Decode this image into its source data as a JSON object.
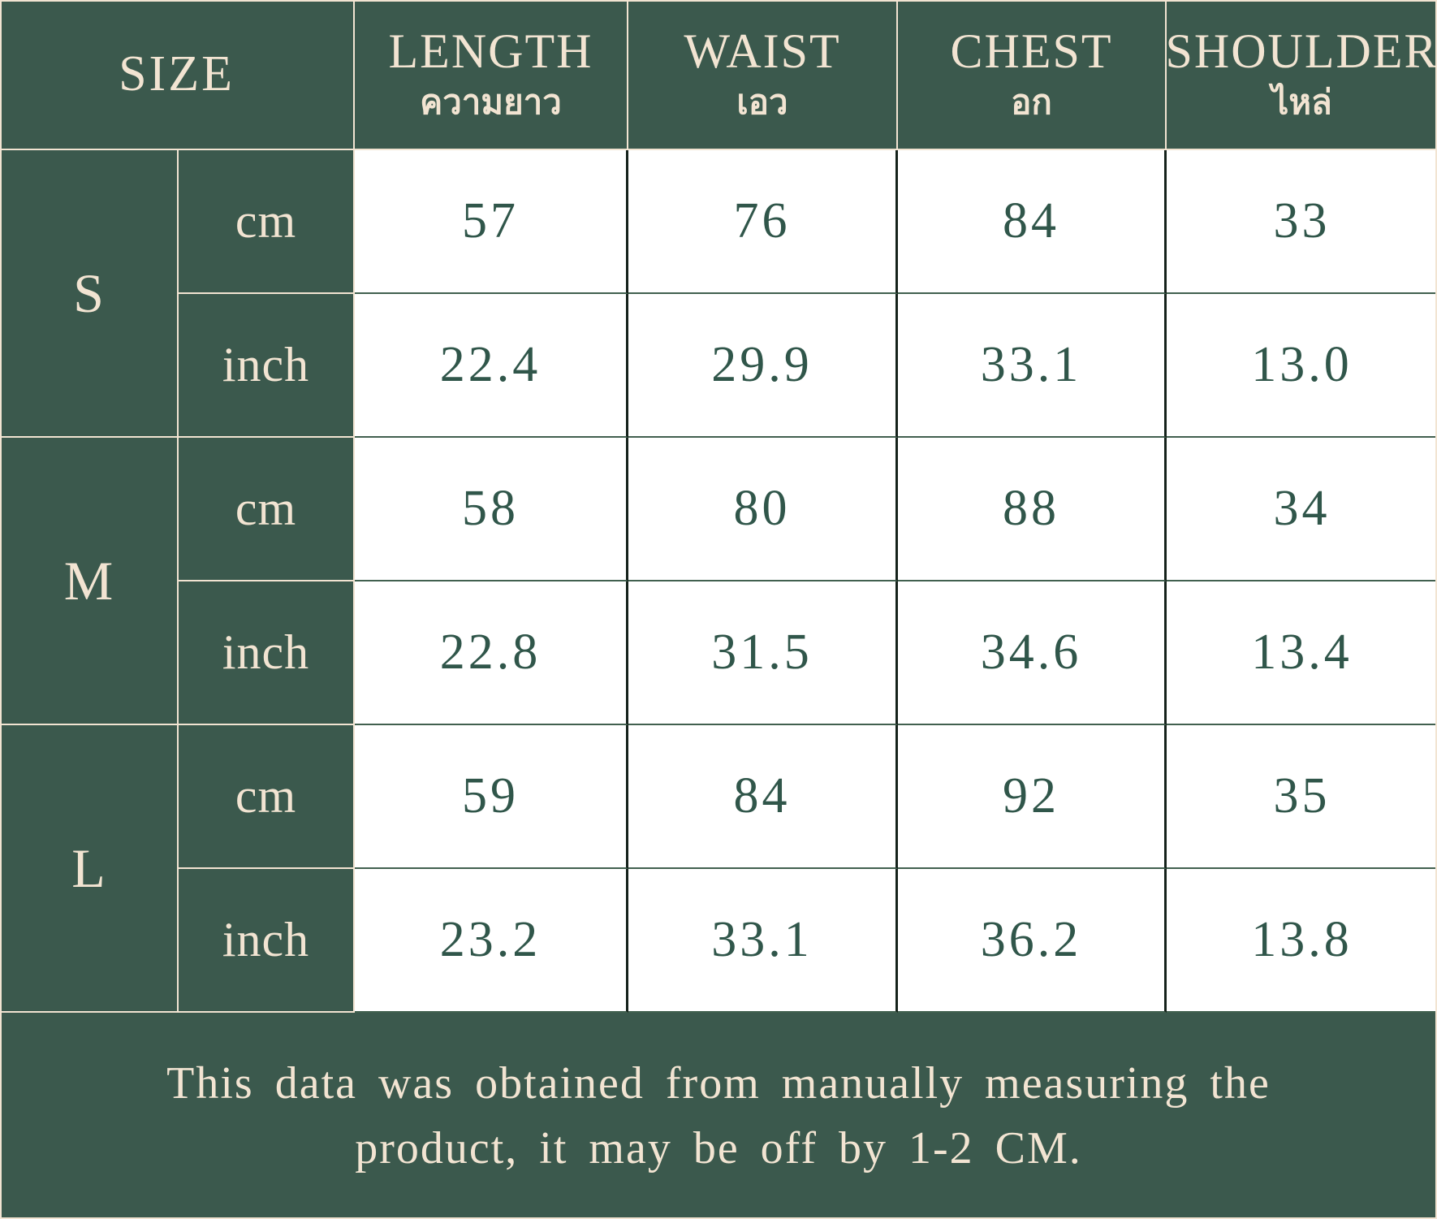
{
  "colors": {
    "green": "#3b594d",
    "cream": "#f2e4d2",
    "cell": "#ffffff",
    "num": "#30564a",
    "vline": "#15221b",
    "hline": "#41604f"
  },
  "chart_data": {
    "type": "table",
    "title": "SIZE",
    "header": {
      "size": "SIZE",
      "measures": [
        {
          "en": "LENGTH",
          "th": "ความยาว"
        },
        {
          "en": "WAIST",
          "th": "เอว"
        },
        {
          "en": "CHEST",
          "th": "อก"
        },
        {
          "en": "SHOULDER",
          "th": "ไหล่"
        }
      ]
    },
    "units": [
      "cm",
      "inch"
    ],
    "rows": [
      {
        "size": "S",
        "unit": "cm",
        "length": "57",
        "waist": "76",
        "chest": "84",
        "shoulder": "33"
      },
      {
        "size": "S",
        "unit": "inch",
        "length": "22.4",
        "waist": "29.9",
        "chest": "33.1",
        "shoulder": "13.0"
      },
      {
        "size": "M",
        "unit": "cm",
        "length": "58",
        "waist": "80",
        "chest": "88",
        "shoulder": "34"
      },
      {
        "size": "M",
        "unit": "inch",
        "length": "22.8",
        "waist": "31.5",
        "chest": "34.6",
        "shoulder": "13.4"
      },
      {
        "size": "L",
        "unit": "cm",
        "length": "59",
        "waist": "84",
        "chest": "92",
        "shoulder": "35"
      },
      {
        "size": "L",
        "unit": "inch",
        "length": "23.2",
        "waist": "33.1",
        "chest": "36.2",
        "shoulder": "13.8"
      }
    ],
    "note_lines": [
      "This data was obtained from manually measuring the",
      "product, it may be off by 1-2 CM."
    ],
    "layout_hints": {
      "grid": "on",
      "header_position": "top",
      "note_position": "bottom"
    }
  }
}
